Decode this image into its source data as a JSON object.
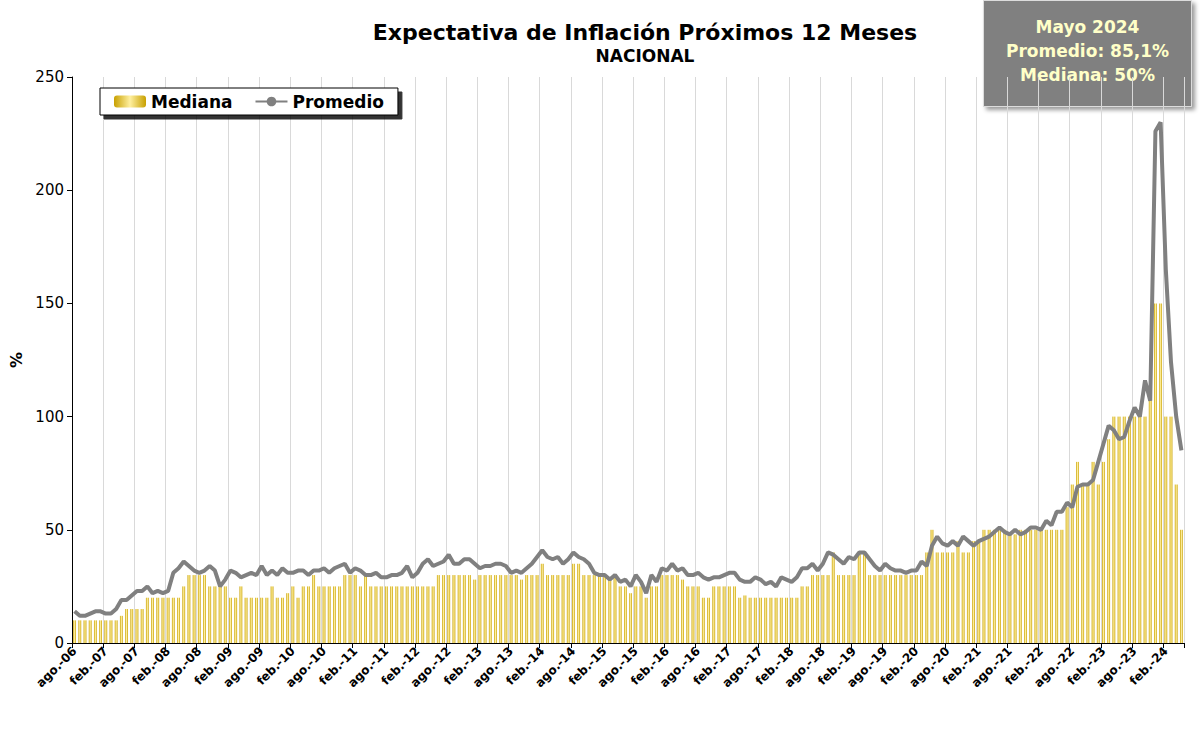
{
  "chart_data": {
    "type": "bar",
    "title": "Expectativa de Inflación Próximos 12 Meses",
    "subtitle": "NACIONAL",
    "y_label": "%",
    "annotation": [
      "Mayo 2024",
      "Promedio: 85,1%",
      "Mediana: 50%"
    ],
    "legend": "upper left",
    "grid": true,
    "ylim": [
      0,
      250
    ],
    "yticks": [
      0,
      50,
      100,
      150,
      200,
      250
    ],
    "categories": [
      "ago.-06",
      null,
      null,
      null,
      null,
      null,
      "feb.-07",
      null,
      null,
      null,
      null,
      null,
      "ago.-07",
      null,
      null,
      null,
      null,
      null,
      "feb.-08",
      null,
      null,
      null,
      null,
      null,
      "ago.-08",
      null,
      null,
      null,
      null,
      null,
      "feb.-09",
      null,
      null,
      null,
      null,
      null,
      "ago.-09",
      null,
      null,
      null,
      null,
      null,
      "feb.-10",
      null,
      null,
      null,
      null,
      null,
      "ago.-10",
      null,
      null,
      null,
      null,
      null,
      "feb.-11",
      null,
      null,
      null,
      null,
      null,
      "ago.-11",
      null,
      null,
      null,
      null,
      null,
      "feb.-12",
      null,
      null,
      null,
      null,
      null,
      "ago.-12",
      null,
      null,
      null,
      null,
      null,
      "feb.-13",
      null,
      null,
      null,
      null,
      null,
      "ago.-13",
      null,
      null,
      null,
      null,
      null,
      "feb.-14",
      null,
      null,
      null,
      null,
      null,
      "ago.-14",
      null,
      null,
      null,
      null,
      null,
      "feb.-15",
      null,
      null,
      null,
      null,
      null,
      "ago.-15",
      null,
      null,
      null,
      null,
      null,
      "feb.-16",
      null,
      null,
      null,
      null,
      null,
      "ago.-16",
      null,
      null,
      null,
      null,
      null,
      "feb.-17",
      null,
      null,
      null,
      null,
      null,
      "ago.-17",
      null,
      null,
      null,
      null,
      null,
      "feb.-18",
      null,
      null,
      null,
      null,
      null,
      "ago.-18",
      null,
      null,
      null,
      null,
      null,
      "feb.-19",
      null,
      null,
      null,
      null,
      null,
      "ago.-19",
      null,
      null,
      null,
      null,
      null,
      "feb.-20",
      null,
      null,
      null,
      null,
      null,
      "ago.-20",
      null,
      null,
      null,
      null,
      null,
      "feb.-21",
      null,
      null,
      null,
      null,
      null,
      "ago.-21",
      null,
      null,
      null,
      null,
      null,
      "feb.-22",
      null,
      null,
      null,
      null,
      null,
      "ago.-22",
      null,
      null,
      null,
      null,
      null,
      "feb.-23",
      null,
      null,
      null,
      null,
      null,
      "ago.-23",
      null,
      null,
      null,
      null,
      null,
      "feb.-24",
      null,
      null,
      null
    ],
    "series": [
      {
        "name": "Mediana",
        "type": "bar",
        "color": "#c8a000",
        "values": [
          10,
          10,
          10,
          10,
          10,
          10,
          10,
          10,
          10,
          12,
          15,
          15,
          15,
          15,
          20,
          20,
          20,
          20,
          20,
          20,
          20,
          25,
          30,
          30,
          30,
          30,
          25,
          25,
          25,
          25,
          20,
          20,
          25,
          20,
          20,
          20,
          20,
          20,
          25,
          20,
          20,
          22,
          25,
          20,
          25,
          25,
          30,
          25,
          25,
          25,
          25,
          25,
          30,
          30,
          30,
          25,
          30,
          25,
          25,
          25,
          25,
          25,
          25,
          25,
          25,
          25,
          25,
          25,
          25,
          25,
          30,
          30,
          30,
          30,
          30,
          30,
          30,
          28,
          30,
          30,
          30,
          30,
          30,
          30,
          30,
          30,
          28,
          30,
          30,
          30,
          35,
          30,
          30,
          30,
          30,
          30,
          35,
          35,
          30,
          30,
          30,
          30,
          30,
          28,
          30,
          25,
          25,
          22,
          25,
          25,
          20,
          25,
          25,
          30,
          30,
          30,
          30,
          28,
          25,
          25,
          25,
          20,
          20,
          25,
          25,
          25,
          25,
          25,
          20,
          21,
          20,
          20,
          20,
          20,
          20,
          20,
          20,
          20,
          20,
          20,
          25,
          25,
          30,
          30,
          30,
          30,
          40,
          30,
          30,
          30,
          30,
          40,
          40,
          30,
          30,
          30,
          30,
          30,
          30,
          30,
          30,
          30,
          30,
          30,
          40,
          50,
          40,
          40,
          40,
          40,
          45,
          40,
          40,
          45,
          45,
          50,
          50,
          50,
          50,
          50,
          48,
          48,
          50,
          50,
          50,
          50,
          50,
          50,
          50,
          50,
          50,
          60,
          70,
          80,
          70,
          70,
          80,
          70,
          80,
          90,
          100,
          100,
          100,
          100,
          100,
          100,
          100,
          110,
          150,
          150,
          100,
          100,
          70,
          50
        ]
      },
      {
        "name": "Promedio",
        "type": "line",
        "color": "#808080",
        "values": [
          14,
          12,
          12,
          13,
          14,
          14,
          13,
          13,
          15,
          19,
          19,
          21,
          23,
          23,
          25,
          22,
          23,
          22,
          23,
          31,
          33,
          36,
          34,
          32,
          31,
          32,
          34,
          32,
          25,
          28,
          32,
          31,
          29,
          30,
          31,
          30,
          34,
          30,
          32,
          30,
          33,
          31,
          31,
          32,
          32,
          30,
          32,
          32,
          33,
          31,
          33,
          34,
          35,
          31,
          33,
          32,
          30,
          30,
          31,
          29,
          29,
          30,
          30,
          31,
          34,
          29,
          31,
          35,
          37,
          34,
          35,
          36,
          39,
          35,
          35,
          37,
          37,
          35,
          33,
          34,
          34,
          35,
          35,
          34,
          31,
          32,
          31,
          33,
          35,
          38,
          41,
          38,
          37,
          38,
          35,
          37,
          40,
          38,
          37,
          35,
          31,
          30,
          30,
          28,
          30,
          27,
          28,
          25,
          30,
          27,
          22,
          30,
          27,
          33,
          32,
          35,
          32,
          33,
          30,
          30,
          31,
          29,
          28,
          29,
          29,
          30,
          31,
          31,
          28,
          27,
          27,
          29,
          28,
          26,
          27,
          25,
          29,
          28,
          27,
          29,
          33,
          33,
          35,
          32,
          35,
          40,
          39,
          37,
          35,
          38,
          37,
          40,
          40,
          37,
          34,
          32,
          35,
          33,
          32,
          32,
          31,
          32,
          32,
          36,
          34,
          43,
          47,
          44,
          43,
          45,
          43,
          47,
          45,
          43,
          45,
          46,
          47,
          49,
          51,
          49,
          48,
          50,
          48,
          49,
          51,
          51,
          50,
          54,
          52,
          58,
          58,
          62,
          60,
          69,
          70,
          70,
          72,
          80,
          88,
          96,
          94,
          90,
          91,
          98,
          104,
          100,
          116,
          107,
          226,
          230,
          165,
          124,
          100,
          85.1
        ]
      }
    ]
  }
}
